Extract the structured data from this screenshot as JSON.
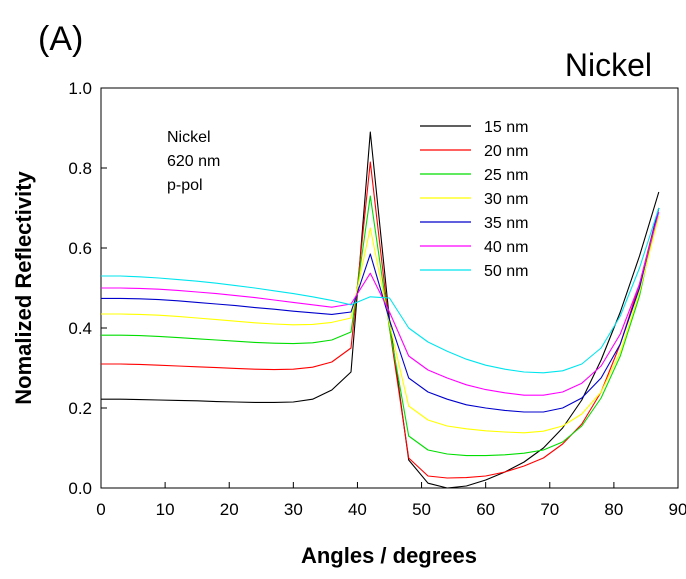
{
  "chart_data": {
    "type": "line",
    "panel_label": "(A)",
    "title": "Nickel",
    "xlabel": "Angles / degrees",
    "ylabel": "Nomalized Reflectivity",
    "xlim": [
      0,
      90
    ],
    "ylim": [
      0,
      1.0
    ],
    "xticks": [
      "0",
      "10",
      "20",
      "30",
      "40",
      "50",
      "60",
      "70",
      "80",
      "90"
    ],
    "yticks": [
      "0.0",
      "0.2",
      "0.4",
      "0.6",
      "0.8",
      "1.0"
    ],
    "grid": false,
    "legend_position": "top-right",
    "annotation": [
      "Nickel",
      "620 nm",
      "p-pol"
    ],
    "x": [
      0,
      3,
      6,
      9,
      12,
      15,
      18,
      21,
      24,
      27,
      30,
      33,
      36,
      39,
      42,
      45,
      48,
      51,
      54,
      57,
      60,
      63,
      66,
      69,
      72,
      75,
      78,
      81,
      84,
      87
    ],
    "series": [
      {
        "name": "15 nm",
        "color": "#000000",
        "values": [
          0.222,
          0.222,
          0.221,
          0.22,
          0.219,
          0.218,
          0.216,
          0.215,
          0.214,
          0.214,
          0.215,
          0.222,
          0.245,
          0.29,
          0.89,
          0.42,
          0.07,
          0.012,
          0.0,
          0.005,
          0.02,
          0.04,
          0.065,
          0.1,
          0.15,
          0.22,
          0.32,
          0.44,
          0.58,
          0.74
        ]
      },
      {
        "name": "20 nm",
        "color": "#ff0000",
        "values": [
          0.31,
          0.31,
          0.309,
          0.307,
          0.305,
          0.303,
          0.301,
          0.299,
          0.297,
          0.296,
          0.297,
          0.302,
          0.315,
          0.35,
          0.815,
          0.4,
          0.075,
          0.03,
          0.025,
          0.026,
          0.03,
          0.04,
          0.055,
          0.075,
          0.11,
          0.16,
          0.24,
          0.36,
          0.51,
          0.7
        ]
      },
      {
        "name": "25 nm",
        "color": "#00dd00",
        "values": [
          0.382,
          0.382,
          0.381,
          0.379,
          0.376,
          0.373,
          0.37,
          0.367,
          0.364,
          0.362,
          0.361,
          0.363,
          0.37,
          0.39,
          0.73,
          0.4,
          0.13,
          0.095,
          0.085,
          0.081,
          0.081,
          0.083,
          0.087,
          0.095,
          0.115,
          0.155,
          0.225,
          0.33,
          0.48,
          0.7
        ]
      },
      {
        "name": "30 nm",
        "color": "#ffff00",
        "values": [
          0.435,
          0.435,
          0.434,
          0.432,
          0.429,
          0.425,
          0.421,
          0.417,
          0.413,
          0.41,
          0.408,
          0.409,
          0.414,
          0.425,
          0.65,
          0.41,
          0.205,
          0.17,
          0.155,
          0.148,
          0.143,
          0.14,
          0.138,
          0.142,
          0.155,
          0.185,
          0.24,
          0.34,
          0.49,
          0.68
        ]
      },
      {
        "name": "35 nm",
        "color": "#0000cc",
        "values": [
          0.474,
          0.474,
          0.473,
          0.471,
          0.468,
          0.464,
          0.46,
          0.456,
          0.451,
          0.447,
          0.442,
          0.438,
          0.434,
          0.44,
          0.585,
          0.42,
          0.275,
          0.24,
          0.222,
          0.208,
          0.2,
          0.194,
          0.19,
          0.19,
          0.2,
          0.225,
          0.275,
          0.36,
          0.5,
          0.7
        ]
      },
      {
        "name": "40 nm",
        "color": "#ff00ff",
        "values": [
          0.5,
          0.5,
          0.499,
          0.497,
          0.494,
          0.49,
          0.486,
          0.481,
          0.476,
          0.47,
          0.464,
          0.458,
          0.452,
          0.46,
          0.537,
          0.44,
          0.33,
          0.295,
          0.275,
          0.258,
          0.246,
          0.238,
          0.232,
          0.232,
          0.24,
          0.262,
          0.305,
          0.385,
          0.51,
          0.69
        ]
      },
      {
        "name": "50 nm",
        "color": "#00e5ee",
        "values": [
          0.53,
          0.53,
          0.528,
          0.525,
          0.521,
          0.517,
          0.512,
          0.506,
          0.5,
          0.493,
          0.486,
          0.478,
          0.469,
          0.458,
          0.478,
          0.475,
          0.4,
          0.365,
          0.342,
          0.322,
          0.307,
          0.297,
          0.29,
          0.288,
          0.293,
          0.31,
          0.35,
          0.43,
          0.55,
          0.7
        ]
      }
    ]
  }
}
